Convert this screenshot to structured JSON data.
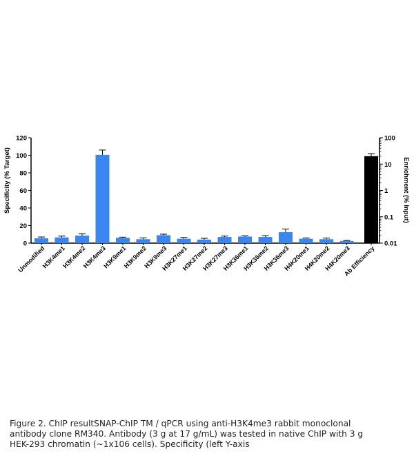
{
  "chart_data": {
    "type": "bar",
    "categories": [
      "Unmodified",
      "H3K4me1",
      "H3K4me2",
      "H3K4me3",
      "H3K9me1",
      "H3K9me2",
      "H3K9me3",
      "H3K27me1",
      "H3K27me2",
      "H3K27me3",
      "H3K36me1",
      "H3K36me2",
      "H3K36me3",
      "H4K20me1",
      "H4K20me2",
      "H4K20me3"
    ],
    "values": [
      5.5,
      6.5,
      8.5,
      100.5,
      6.0,
      4.5,
      9.0,
      5.0,
      4.0,
      7.0,
      7.5,
      7.0,
      12.5,
      5.0,
      4.5,
      2.5
    ],
    "errors": [
      1.5,
      1.5,
      2.0,
      5.5,
      0.8,
      1.5,
      1.2,
      1.5,
      1.5,
      1.0,
      0.8,
      1.5,
      3.5,
      0.8,
      1.2,
      0.5
    ],
    "bar_color": "#3a86f0",
    "ylabel_left": "Specificity (% Target)",
    "ylim_left": [
      0,
      120
    ],
    "yticks_left": [
      0,
      20,
      40,
      60,
      80,
      100,
      120
    ],
    "right_axis": {
      "label": "Enrichment (% Input)",
      "scale": "log",
      "ylim": [
        0.01,
        100
      ],
      "ticks": [
        "0.01",
        "0.1",
        "1",
        "10",
        "100"
      ],
      "tick_values": [
        0.01,
        0.1,
        1,
        10,
        100
      ],
      "category": "Ab Efficiency",
      "value": 20,
      "error_upper": 25,
      "bar_color": "#000000"
    }
  },
  "caption": {
    "lines": [
      "Figure 2. ChIP resultSNAP-ChIP TM / qPCR using anti-H3K4me3 rabbit monoclonal",
      "antibody clone RM340. Antibody (3 g at 17 g/mL) was tested in native ChIP with 3 g",
      "HEK-293 chromatin (~1x106 cells). Specificity (left Y-axis"
    ]
  }
}
